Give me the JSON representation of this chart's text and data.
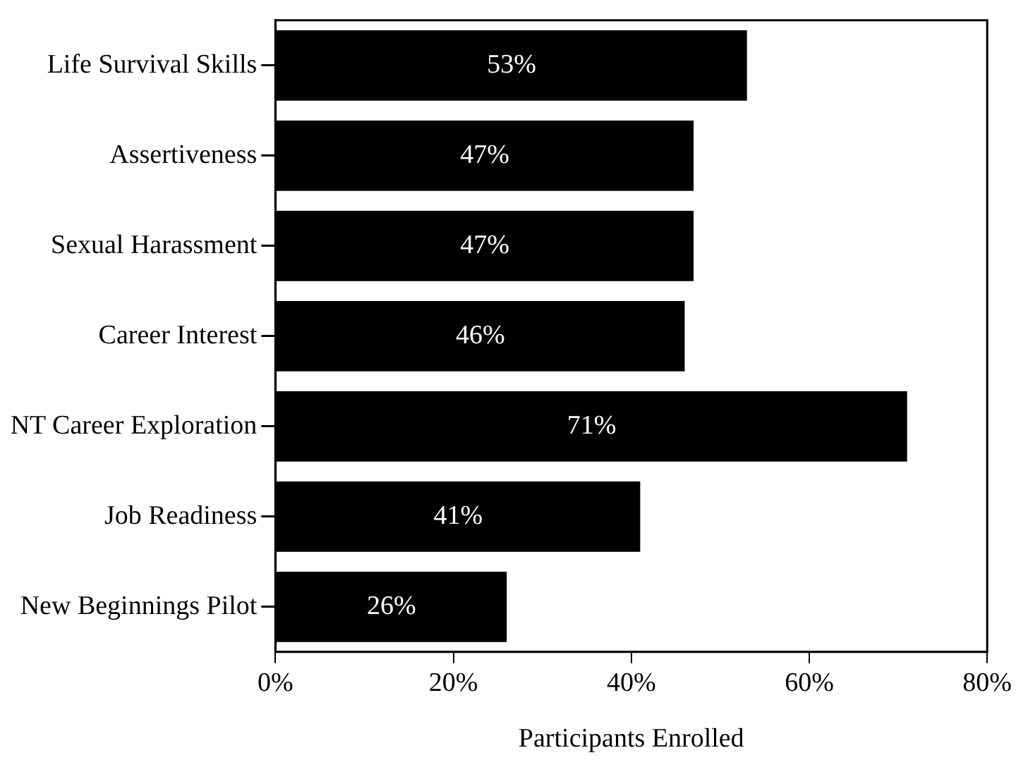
{
  "chart_data": {
    "type": "bar",
    "orientation": "horizontal",
    "xlabel": "Participants Enrolled",
    "categories": [
      "Life Survival Skills",
      "Assertiveness",
      "Sexual Harassment",
      "Career Interest",
      "NT Career Exploration",
      "Job Readiness",
      "New Beginnings Pilot"
    ],
    "values": [
      53,
      47,
      47,
      46,
      71,
      41,
      26
    ],
    "value_labels": [
      "53%",
      "47%",
      "47%",
      "46%",
      "71%",
      "41%",
      "26%"
    ],
    "color": "#000000",
    "xlim": [
      0,
      80
    ],
    "xticks": [
      {
        "value": 0,
        "label": "0%"
      },
      {
        "value": 20,
        "label": "20%"
      },
      {
        "value": 40,
        "label": "40%"
      },
      {
        "value": 60,
        "label": "60%"
      },
      {
        "value": 80,
        "label": "80%"
      }
    ],
    "grid": false,
    "legend": false
  }
}
